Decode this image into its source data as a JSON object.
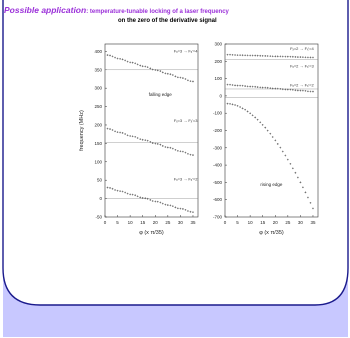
{
  "slide": {
    "title_lead": "Possible application",
    "title_rest": ": temperature-tunable locking of a laser frequency",
    "subtitle": "on the zero of the derivative signal",
    "colors": {
      "title": "#9b30d9",
      "frame_fill": "#c8c8ff",
      "frame_stroke": "#1a1a8c",
      "markers": "#555555"
    }
  },
  "chart_data": [
    {
      "type": "scatter",
      "title": "",
      "xlabel": "φ (x π/35)",
      "ylabel": "frequency (MHz)",
      "xlim": [
        0,
        37
      ],
      "ylim": [
        -50,
        420
      ],
      "x_ticks": [
        "0",
        "5",
        "10",
        "15",
        "20",
        "25",
        "30",
        "35"
      ],
      "y_ticks": [
        "-50",
        "0",
        "50",
        "100",
        "150",
        "200",
        "250",
        "300",
        "350",
        "400"
      ],
      "annotations": [
        "falling edge"
      ],
      "zero_line_values": [
        350,
        153,
        0
      ],
      "series": [
        {
          "name": "Fₓ=3 → Fₓ'=4",
          "x0": 1,
          "x1": 35,
          "y0": 390,
          "y1": 318
        },
        {
          "name": "Fₓ=3 → Fₓ'=3",
          "x0": 1,
          "x1": 35,
          "y0": 190,
          "y1": 118
        },
        {
          "name": "Fₓ=3 → Fₓ'=2",
          "x0": 1,
          "x1": 35,
          "y0": 30,
          "y1": -37
        }
      ]
    },
    {
      "type": "scatter",
      "title": "",
      "xlabel": "φ (x π/35)",
      "ylabel": "",
      "xlim": [
        0,
        37
      ],
      "ylim": [
        -700,
        300
      ],
      "x_ticks": [
        "0",
        "5",
        "10",
        "15",
        "20",
        "25",
        "30",
        "35"
      ],
      "y_ticks": [
        "-700",
        "-600",
        "-500",
        "-400",
        "-300",
        "-200",
        "-100",
        "0",
        "100",
        "200",
        "300"
      ],
      "annotations": [
        "rising edge"
      ],
      "zero_line_values": [
        210,
        40,
        -10
      ],
      "series": [
        {
          "name": "Fₓ=2 → Fₓ'=4",
          "x0": 1,
          "x1": 35,
          "y0": 238,
          "y1": 222
        },
        {
          "name": "Fₓ=2 → Fₓ'=3",
          "x0": 1,
          "x1": 35,
          "y0": 65,
          "y1": 25
        },
        {
          "name": "Fₓ=2 → Fₓ'=2",
          "x0": 1,
          "x1": 35,
          "y0": -45,
          "y1": -650,
          "curve": "quadratic"
        }
      ]
    }
  ]
}
